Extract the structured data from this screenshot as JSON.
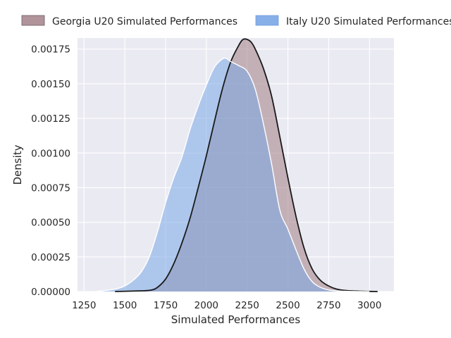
{
  "chart_data": {
    "type": "area",
    "title": "",
    "xlabel": "Simulated Performances",
    "ylabel": "Density",
    "xlim": [
      1210,
      3150
    ],
    "ylim": [
      0,
      0.00183
    ],
    "xticks": [
      1250,
      1500,
      1750,
      2000,
      2250,
      2500,
      2750,
      3000
    ],
    "xtick_labels": [
      "1250",
      "1500",
      "1750",
      "2000",
      "2250",
      "2500",
      "2750",
      "3000"
    ],
    "yticks": [
      0,
      0.00025,
      0.0005,
      0.00075,
      0.001,
      0.00125,
      0.0015,
      0.00175
    ],
    "ytick_labels": [
      "0.00000",
      "0.00025",
      "0.00050",
      "0.00075",
      "0.00100",
      "0.00125",
      "0.00150",
      "0.00175"
    ],
    "grid": true,
    "legend_position": "top",
    "series": [
      {
        "name": "Georgia U20 Simulated Performances",
        "color": "#a88890",
        "fill_opacity": 0.6,
        "line_color": "#1a1a1a",
        "x": [
          1440,
          1600,
          1660,
          1700,
          1750,
          1800,
          1850,
          1900,
          1950,
          2000,
          2050,
          2100,
          2150,
          2200,
          2225,
          2250,
          2275,
          2300,
          2350,
          2400,
          2450,
          2500,
          2550,
          2600,
          2650,
          2700,
          2750,
          2800,
          2850,
          2900,
          3000,
          3050
        ],
        "y": [
          0,
          5e-06,
          1e-05,
          3e-05,
          9e-05,
          0.0002,
          0.00035,
          0.00053,
          0.00075,
          0.00098,
          0.00123,
          0.00147,
          0.00166,
          0.00178,
          0.00182,
          0.00182,
          0.0018,
          0.00175,
          0.00161,
          0.00141,
          0.00112,
          0.00082,
          0.00054,
          0.00031,
          0.00016,
          8e-05,
          4e-05,
          1.7e-05,
          8e-06,
          4e-06,
          1e-06,
          0
        ]
      },
      {
        "name": "Italy U20 Simulated Performances",
        "color": "#7aa7e6",
        "fill_opacity": 0.55,
        "line_color": "#ffffff",
        "x": [
          1320,
          1400,
          1450,
          1500,
          1550,
          1600,
          1650,
          1700,
          1750,
          1800,
          1850,
          1900,
          1950,
          2000,
          2050,
          2100,
          2125,
          2150,
          2200,
          2250,
          2300,
          2350,
          2400,
          2450,
          2500,
          2550,
          2600,
          2650,
          2700,
          2750,
          2800,
          2900,
          3000
        ],
        "y": [
          0,
          1e-05,
          2e-05,
          4e-05,
          8e-05,
          0.00014,
          0.00025,
          0.00043,
          0.00064,
          0.00082,
          0.00097,
          0.00117,
          0.00134,
          0.00149,
          0.00162,
          0.00168,
          0.00168,
          0.00166,
          0.00163,
          0.00159,
          0.00146,
          0.00121,
          0.00092,
          0.00059,
          0.00045,
          0.0003,
          0.00016,
          7e-05,
          3e-05,
          1.2e-05,
          5e-06,
          1e-06,
          0
        ]
      }
    ]
  }
}
